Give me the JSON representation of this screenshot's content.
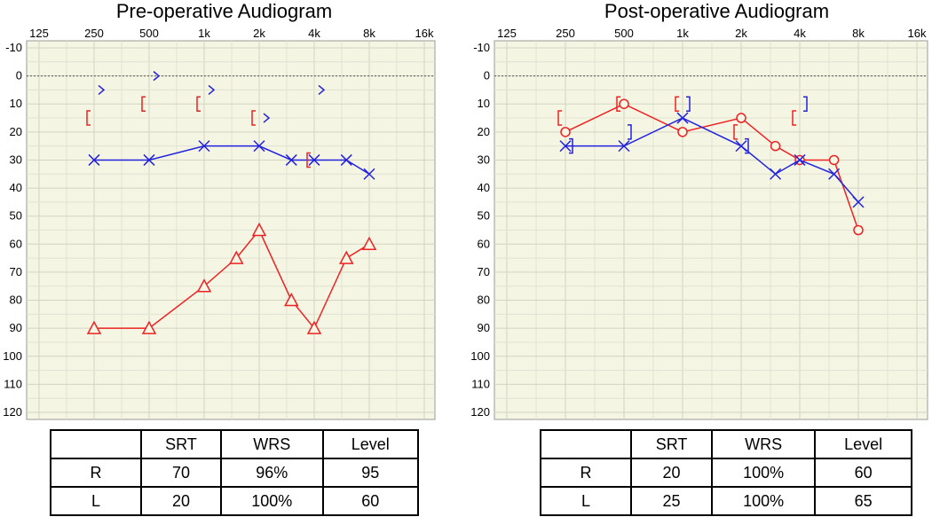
{
  "charts": [
    {
      "title": "Pre-operative Audiogram",
      "table": {
        "headers": [
          "",
          "SRT",
          "WRS",
          "Level"
        ],
        "rows": [
          {
            "label": "R",
            "cells": [
              "70",
              "96%",
              "95"
            ]
          },
          {
            "label": "L",
            "cells": [
              "20",
              "100%",
              "60"
            ]
          }
        ]
      }
    },
    {
      "title": "Post-operative Audiogram",
      "table": {
        "headers": [
          "",
          "SRT",
          "WRS",
          "Level"
        ],
        "rows": [
          {
            "label": "R",
            "cells": [
              "20",
              "100%",
              "60"
            ]
          },
          {
            "label": "L",
            "cells": [
              "25",
              "100%",
              "65"
            ]
          }
        ]
      }
    }
  ],
  "chart_data": [
    {
      "type": "line",
      "title": "Pre-operative Audiogram",
      "x_ticks": [
        "125",
        "250",
        "500",
        "1k",
        "2k",
        "4k",
        "8k",
        "16k"
      ],
      "x_scale": "log2",
      "ylim": [
        -10,
        120
      ],
      "y_inverted": true,
      "y_ticks": [
        -10,
        0,
        10,
        20,
        30,
        40,
        50,
        60,
        70,
        80,
        90,
        100,
        110,
        120
      ],
      "grid": true,
      "reference_line_db": 0,
      "colors": {
        "right": "#ee2222",
        "left": "#2222dd"
      },
      "series": [
        {
          "ear": "right",
          "marker": "triangle",
          "connected": true,
          "points": [
            [
              250,
              90
            ],
            [
              500,
              90
            ],
            [
              1000,
              75
            ],
            [
              1500,
              65
            ],
            [
              2000,
              55
            ],
            [
              3000,
              80
            ],
            [
              4000,
              90
            ],
            [
              6000,
              65
            ],
            [
              8000,
              60
            ]
          ]
        },
        {
          "ear": "left",
          "marker": "x",
          "connected": true,
          "points": [
            [
              250,
              30
            ],
            [
              500,
              30
            ],
            [
              1000,
              25
            ],
            [
              2000,
              25
            ],
            [
              3000,
              30
            ],
            [
              4000,
              30
            ],
            [
              6000,
              30
            ],
            [
              8000,
              35
            ]
          ]
        },
        {
          "ear": "right",
          "marker": "bracket-open",
          "connected": false,
          "points": [
            [
              250,
              15
            ],
            [
              500,
              10
            ],
            [
              1000,
              10
            ],
            [
              2000,
              15
            ],
            [
              4000,
              30
            ]
          ]
        },
        {
          "ear": "left",
          "marker": "chevron-right",
          "connected": false,
          "points": [
            [
              250,
              5
            ],
            [
              500,
              0
            ],
            [
              1000,
              5
            ],
            [
              2000,
              15
            ],
            [
              4000,
              5
            ]
          ]
        }
      ]
    },
    {
      "type": "line",
      "title": "Post-operative Audiogram",
      "x_ticks": [
        "125",
        "250",
        "500",
        "1k",
        "2k",
        "4k",
        "8k",
        "16k"
      ],
      "x_scale": "log2",
      "ylim": [
        -10,
        120
      ],
      "y_inverted": true,
      "y_ticks": [
        -10,
        0,
        10,
        20,
        30,
        40,
        50,
        60,
        70,
        80,
        90,
        100,
        110,
        120
      ],
      "grid": true,
      "reference_line_db": 0,
      "colors": {
        "right": "#ee2222",
        "left": "#2222dd"
      },
      "series": [
        {
          "ear": "right",
          "marker": "circle",
          "connected": true,
          "points": [
            [
              250,
              20
            ],
            [
              500,
              10
            ],
            [
              1000,
              20
            ],
            [
              2000,
              15
            ],
            [
              3000,
              25
            ],
            [
              4000,
              30
            ],
            [
              6000,
              30
            ],
            [
              8000,
              55
            ]
          ]
        },
        {
          "ear": "left",
          "marker": "x",
          "connected": true,
          "points": [
            [
              250,
              25
            ],
            [
              500,
              25
            ],
            [
              1000,
              15
            ],
            [
              2000,
              25
            ],
            [
              3000,
              35
            ],
            [
              4000,
              30
            ],
            [
              6000,
              35
            ],
            [
              8000,
              45
            ]
          ]
        },
        {
          "ear": "right",
          "marker": "bracket-open",
          "connected": false,
          "points": [
            [
              250,
              15
            ],
            [
              500,
              10
            ],
            [
              1000,
              10
            ],
            [
              2000,
              20
            ],
            [
              4000,
              15
            ]
          ]
        },
        {
          "ear": "left",
          "marker": "bracket-close",
          "connected": false,
          "points": [
            [
              250,
              25
            ],
            [
              500,
              20
            ],
            [
              1000,
              10
            ],
            [
              2000,
              25
            ],
            [
              4000,
              10
            ]
          ]
        }
      ]
    }
  ]
}
